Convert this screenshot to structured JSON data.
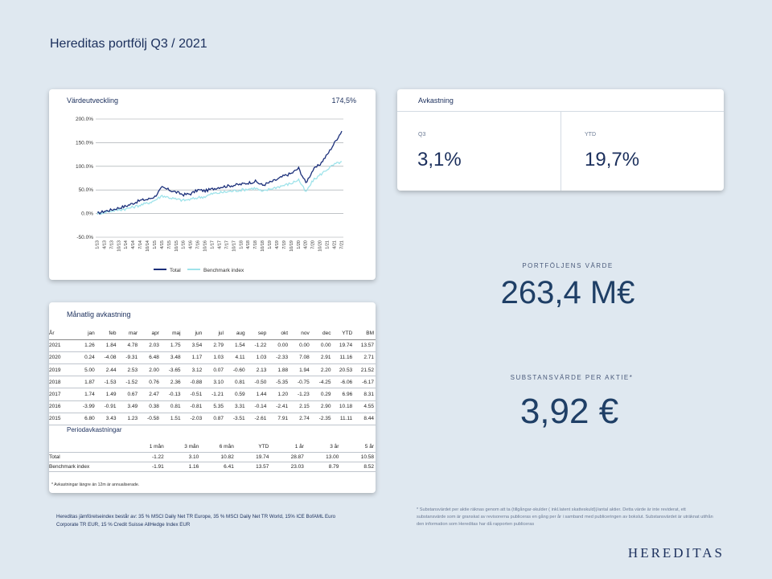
{
  "page_title": "Hereditas portfölj Q3 / 2021",
  "value_chart": {
    "heading": "Värdeutveckling",
    "total_value": "174,5%",
    "legend": {
      "total": "Total",
      "benchmark": "Benchmark index"
    },
    "colors": {
      "total": "#1b2f7a",
      "benchmark": "#9fe3ea"
    }
  },
  "chart_data": {
    "type": "line",
    "ylim": [
      -50,
      200
    ],
    "y_ticks": [
      "200.0%",
      "150.0%",
      "100.0%",
      "50.0%",
      "0.0%",
      "-50.0%"
    ],
    "x_ticks": [
      "1/13",
      "4/13",
      "7/13",
      "10/13",
      "1/14",
      "4/14",
      "7/14",
      "10/14",
      "1/15",
      "4/15",
      "7/15",
      "10/15",
      "1/16",
      "4/16",
      "7/16",
      "10/16",
      "1/17",
      "4/17",
      "7/17",
      "10/17",
      "1/18",
      "4/18",
      "7/18",
      "10/18",
      "1/19",
      "4/19",
      "7/19",
      "10/19",
      "1/20",
      "4/20",
      "7/20",
      "10/20",
      "1/21",
      "4/21",
      "7/21"
    ],
    "series": [
      {
        "name": "Total",
        "values": [
          0,
          5,
          8,
          12,
          16,
          22,
          28,
          30,
          36,
          55,
          50,
          45,
          40,
          42,
          50,
          48,
          52,
          56,
          58,
          60,
          62,
          65,
          68,
          60,
          66,
          72,
          80,
          85,
          96,
          65,
          92,
          105,
          125,
          150,
          174.5
        ]
      },
      {
        "name": "Benchmark index",
        "values": [
          0,
          3,
          6,
          8,
          10,
          14,
          18,
          22,
          28,
          38,
          34,
          30,
          28,
          30,
          34,
          36,
          42,
          44,
          46,
          48,
          50,
          52,
          54,
          46,
          52,
          56,
          60,
          64,
          72,
          45,
          70,
          82,
          94,
          104,
          110
        ]
      }
    ],
    "grid": true,
    "legend_position": "bottom"
  },
  "returns": {
    "heading": "Avkastning",
    "q3_label": "Q3",
    "q3_value": "3,1%",
    "ytd_label": "YTD",
    "ytd_value": "19,7%"
  },
  "portfolio_value": {
    "label": "PORTFÖLJENS VÄRDE",
    "value": "263,4 M€"
  },
  "nav_per_share": {
    "label": "SUBSTANSVÄRDE  PER AKTIE*",
    "value": "3,92 €"
  },
  "monthly": {
    "heading": "Månatlig avkastning",
    "headers": [
      "År",
      "jan",
      "feb",
      "mar",
      "apr",
      "maj",
      "jun",
      "jul",
      "aug",
      "sep",
      "okt",
      "nov",
      "dec",
      "YTD",
      "BM"
    ],
    "rows": [
      [
        "2021",
        "1.26",
        "1.84",
        "4.78",
        "2.03",
        "1.75",
        "3.54",
        "2.79",
        "1.54",
        "-1.22",
        "0.00",
        "0.00",
        "0.00",
        "19.74",
        "13.57"
      ],
      [
        "2020",
        "0.24",
        "-4.08",
        "-9.31",
        "6.48",
        "3.48",
        "1.17",
        "1.03",
        "4.11",
        "1.03",
        "-2.33",
        "7.08",
        "2.91",
        "11.16",
        "2.71"
      ],
      [
        "2019",
        "5.00",
        "2.44",
        "2.53",
        "2.00",
        "-3.65",
        "3.12",
        "0.07",
        "-0.60",
        "2.13",
        "1.88",
        "1.94",
        "2.20",
        "20.53",
        "21.52"
      ],
      [
        "2018",
        "1.87",
        "-1.53",
        "-1.52",
        "0.76",
        "2.36",
        "-0.88",
        "3.10",
        "0.81",
        "-0.50",
        "-5.35",
        "-0.75",
        "-4.25",
        "-6.06",
        "-6.17"
      ],
      [
        "2017",
        "1.74",
        "1.49",
        "0.67",
        "2.47",
        "-0.13",
        "-0.51",
        "-1.21",
        "0.59",
        "1.44",
        "1.20",
        "-1.23",
        "0.29",
        "6.96",
        "8.31"
      ],
      [
        "2016",
        "-3.99",
        "-0.91",
        "3.49",
        "0.38",
        "0.81",
        "-0.81",
        "5.35",
        "3.31",
        "-0.14",
        "-2.41",
        "2.15",
        "2.90",
        "10.18",
        "4.55"
      ],
      [
        "2015",
        "6.80",
        "3.43",
        "1.23",
        "-0.58",
        "1.51",
        "-2.03",
        "0.87",
        "-3.51",
        "-2.61",
        "7.91",
        "2.74",
        "-2.35",
        "11.11",
        "8.44"
      ]
    ]
  },
  "period": {
    "heading": "Periodavkastningar",
    "headers": [
      "",
      "1 mån",
      "3 mån",
      "6 mån",
      "YTD",
      "1 år",
      "3 år",
      "5 år"
    ],
    "rows": [
      [
        "Total",
        "-1.22",
        "3.10",
        "10.82",
        "19.74",
        "28.87",
        "13.00",
        "10.58"
      ],
      [
        "Benchmark index",
        "-1.91",
        "1.16",
        "6.41",
        "13.57",
        "23.03",
        "8.79",
        "8.52"
      ]
    ],
    "note": "* Avkastningar längre än 12m är annualiserade."
  },
  "footnote_left": "Hereditas jämförelseindex består av: 35 % MSCI Daily Net TR Europe, 35 % MSCI Daily Net TR World, 15% ICE BofAML Euro Corporate TR EUR, 15 % Credit Suisse AllHedge Index EUR",
  "footnote_right": "* Substansvärdet per aktie räknas genom att ta (tillgångar-skulder ( inkl.latent skatteskuld))/antal aktier. Detta värde är inte reviderat, ett substansvärde som är granskat av revisorerna publiceras en gång per år i samband med publiceringen av bokslut. Substansvärdet är uträknat utifrån den information som Hereditas har då rapporten publiceras",
  "logo": "HEREDITAS"
}
